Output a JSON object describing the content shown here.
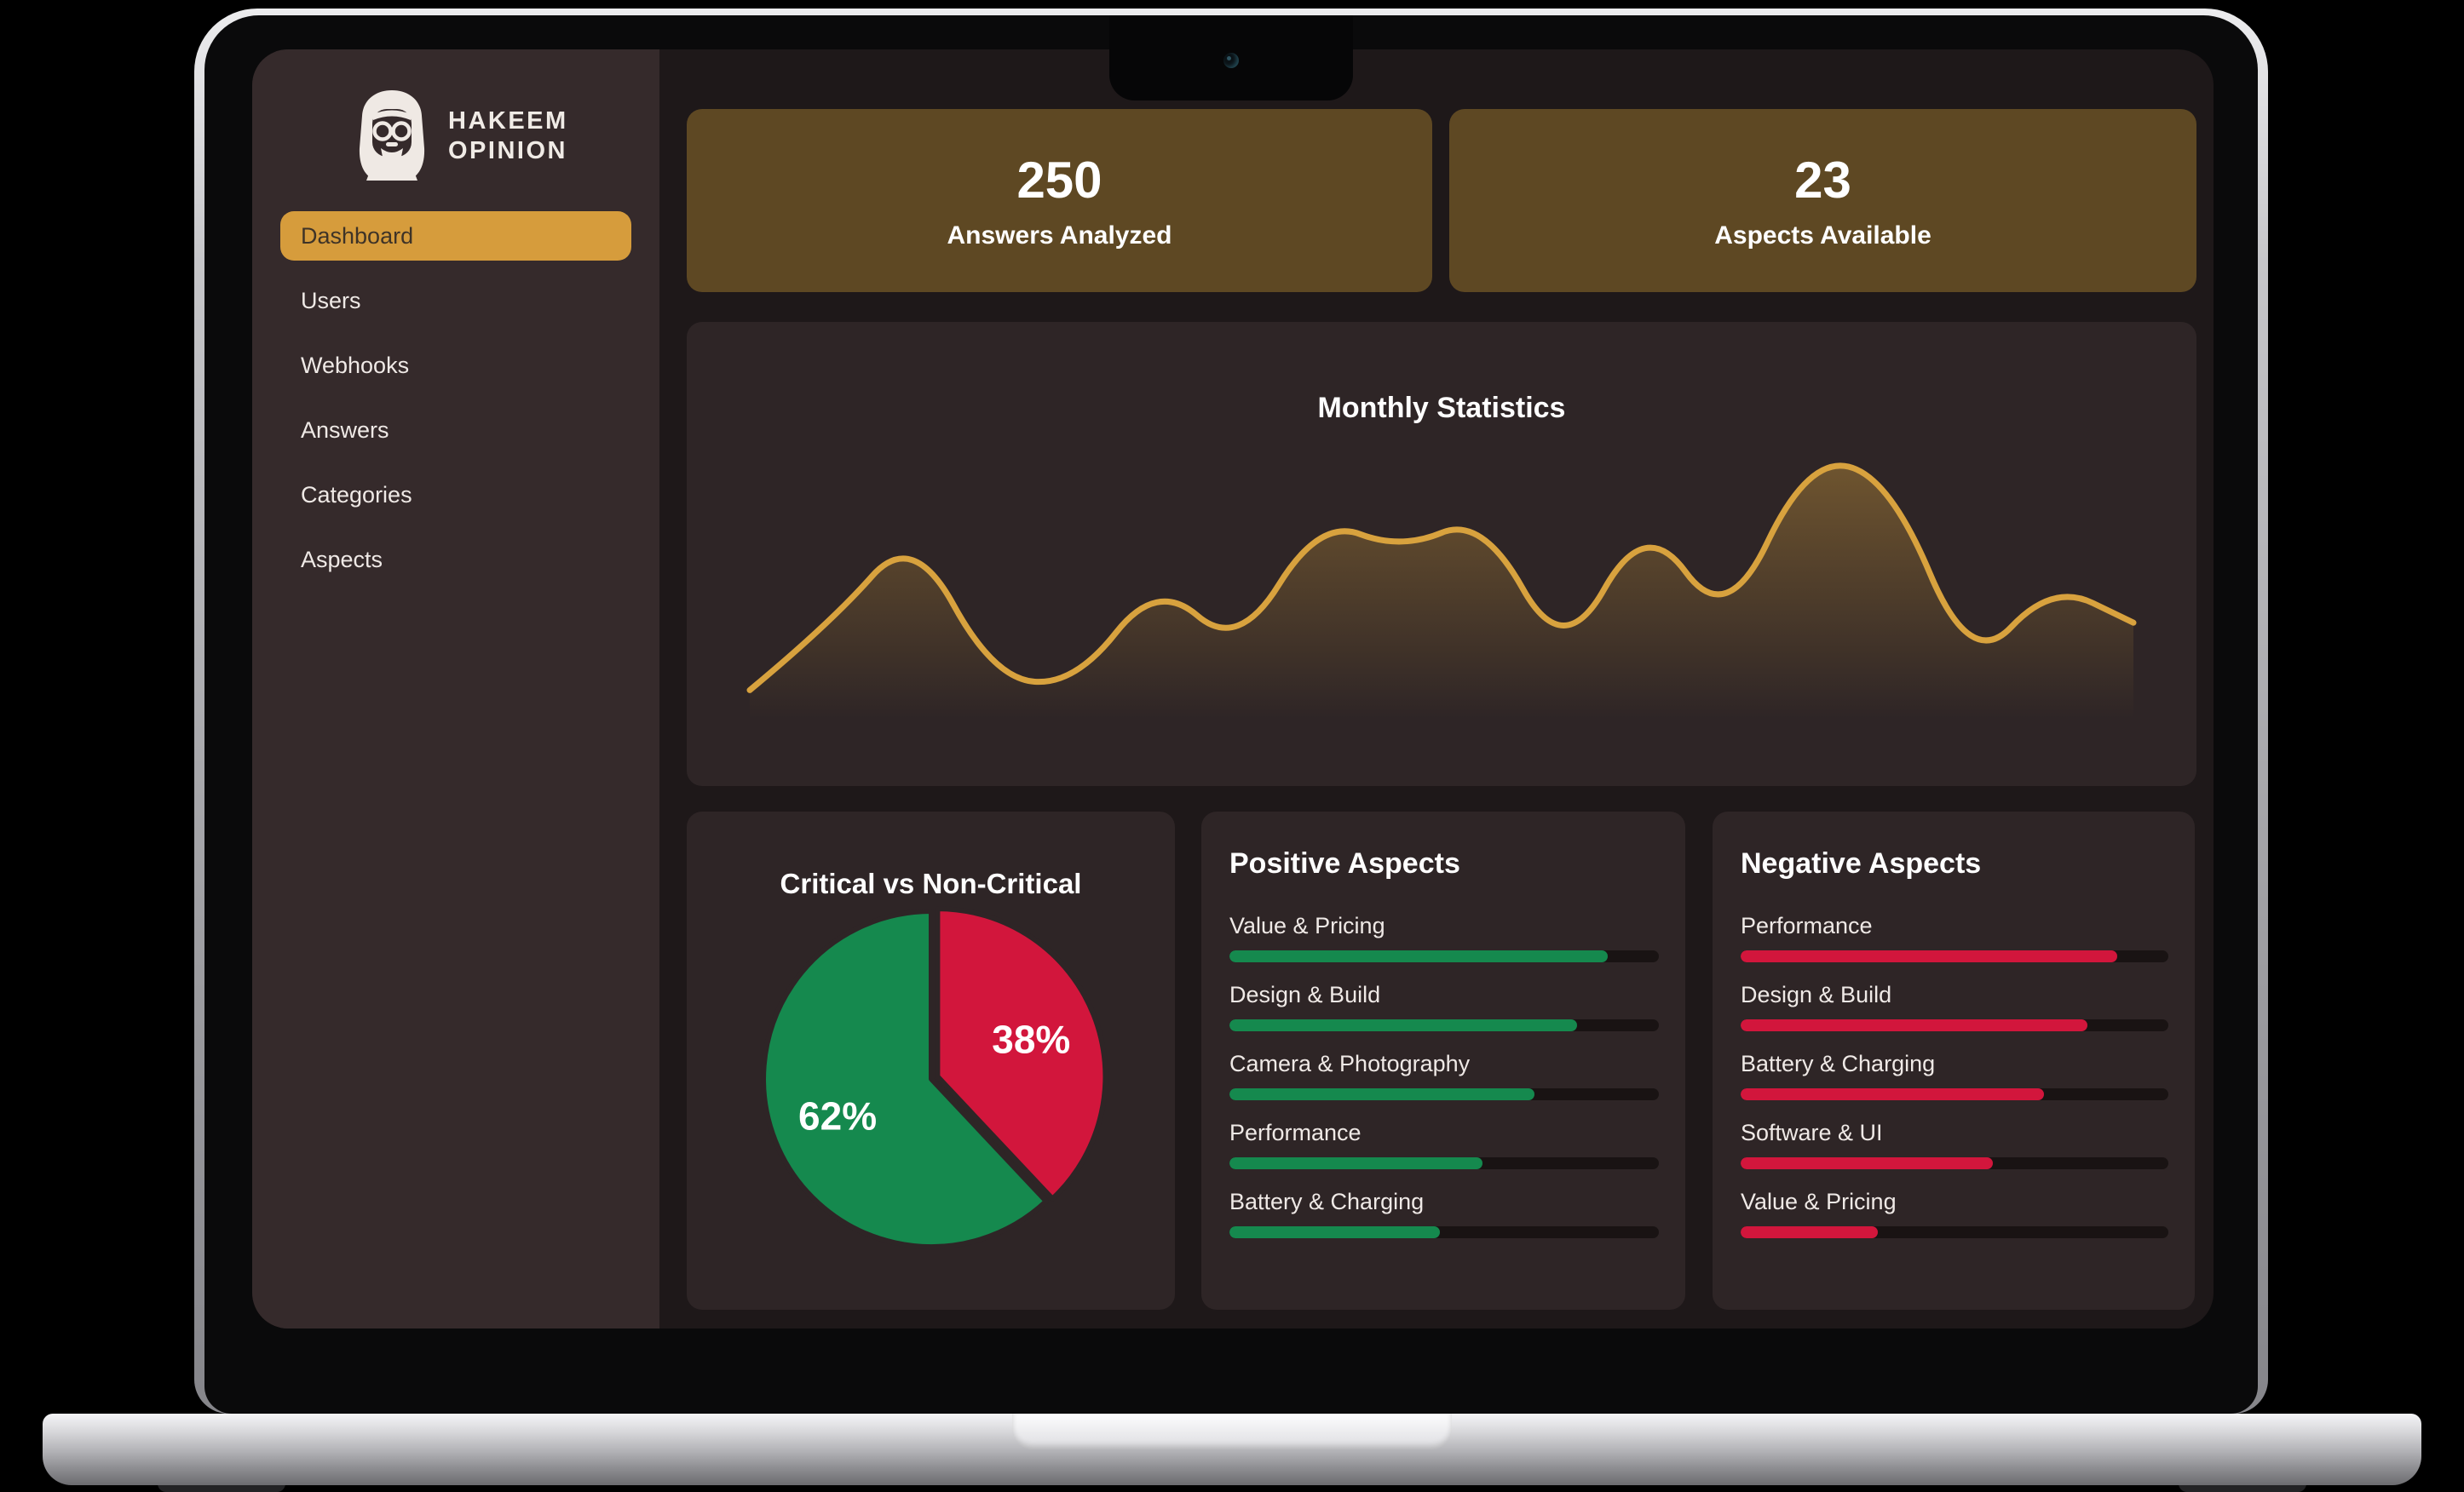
{
  "brand": {
    "line1": "HAKEEM",
    "line2": "OPINION"
  },
  "sidebar": {
    "items": [
      {
        "label": "Dashboard",
        "active": true
      },
      {
        "label": "Users",
        "active": false
      },
      {
        "label": "Webhooks",
        "active": false
      },
      {
        "label": "Answers",
        "active": false
      },
      {
        "label": "Categories",
        "active": false
      },
      {
        "label": "Aspects",
        "active": false
      }
    ]
  },
  "stats": [
    {
      "value": "250",
      "label": "Answers Analyzed"
    },
    {
      "value": "23",
      "label": "Aspects Available"
    }
  ],
  "colors": {
    "accent_gold": "#D69C3C",
    "chart_gold": "#D8A23E",
    "green": "#15894E",
    "red": "#D2163C",
    "card_bg": "#2E2526",
    "sidebar_bg": "#352A2B",
    "main_bg": "#1E1819",
    "stat_card_bg": "#5E4823",
    "track_bg": "#191313"
  },
  "chart_data": [
    {
      "type": "line",
      "title": "Monthly Statistics",
      "values": [
        12,
        36,
        69,
        16,
        14,
        51,
        26,
        73,
        62,
        74,
        22,
        74,
        34,
        95,
        88,
        19,
        50,
        36
      ],
      "ylim": [
        0,
        100
      ],
      "line_color": "#D8A23E",
      "fill": "gold-gradient-fade",
      "grid": false,
      "axes_labels": false
    },
    {
      "type": "pie",
      "title": "Critical vs Non-Critical",
      "slices": [
        {
          "text": "38%",
          "value": 38,
          "color": "#D2163C",
          "exploded": true
        },
        {
          "text": "62%",
          "value": 62,
          "color": "#15894E",
          "exploded": false
        }
      ],
      "start_angle_deg": 0,
      "label_color": "#FFFFFF"
    },
    {
      "type": "bar",
      "title": "Positive Aspects",
      "categories": [
        "Value & Pricing",
        "Design & Build",
        "Camera & Photography",
        "Performance",
        "Battery & Charging"
      ],
      "values": [
        88,
        81,
        71,
        59,
        49
      ],
      "unit": "%",
      "xlim": [
        0,
        100
      ],
      "color": "#15894E"
    },
    {
      "type": "bar",
      "title": "Negative Aspects",
      "categories": [
        "Performance",
        "Design & Build",
        "Battery & Charging",
        "Software & UI",
        "Value & Pricing"
      ],
      "values": [
        88,
        81,
        71,
        59,
        32
      ],
      "unit": "%",
      "xlim": [
        0,
        100
      ],
      "color": "#D2163C"
    }
  ]
}
